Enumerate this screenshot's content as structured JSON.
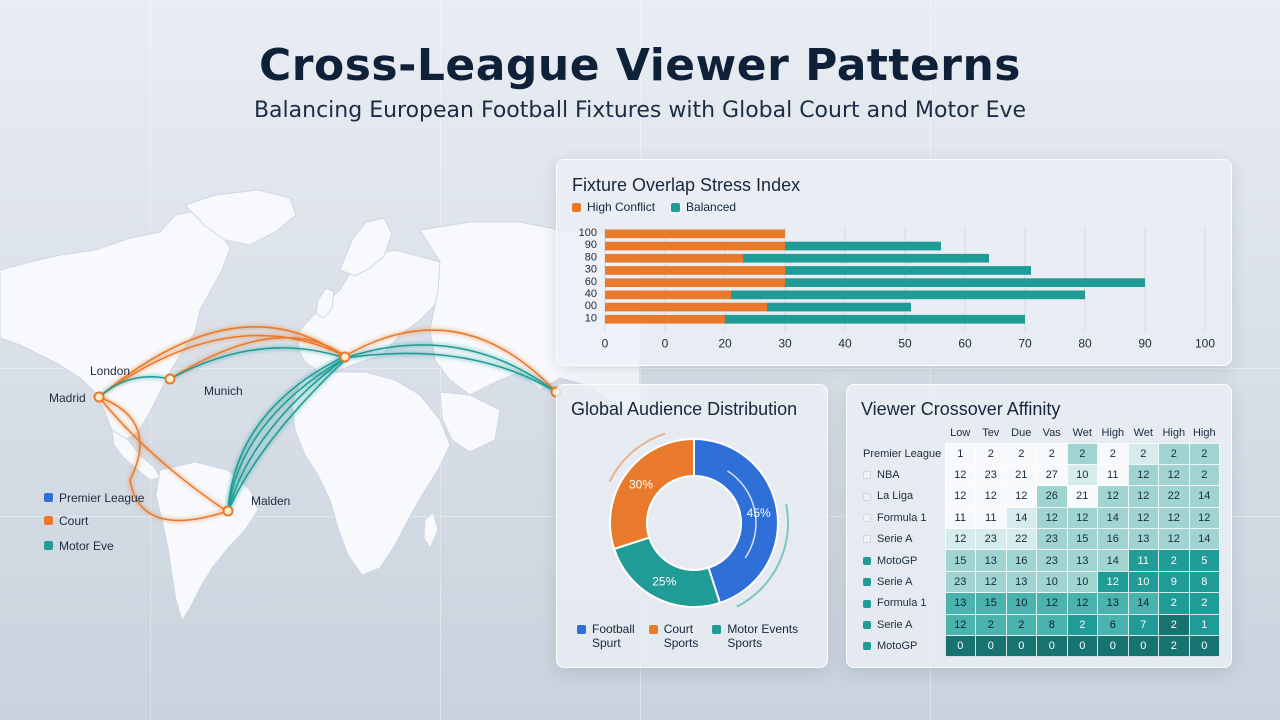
{
  "header": {
    "title": "Cross-League Viewer Patterns",
    "subtitle": "Balancing European Football Fixtures with Global Court and Motor Eve"
  },
  "colors": {
    "football_blue": "#2e6fd8",
    "court_orange": "#ea7a2b",
    "motor_teal": "#1f9c96",
    "dark_text": "#0f2138"
  },
  "map": {
    "cities": [
      "London",
      "Madrid",
      "Munich",
      "Malden"
    ],
    "legend": [
      "Premier League",
      "Court",
      "Motor Eve"
    ]
  },
  "chart_data": [
    {
      "type": "bar",
      "title": "Fixture Overlap Stress Index",
      "legend": [
        "High Conflict",
        "Balanced"
      ],
      "categories": [
        "100",
        "90",
        "80",
        "30",
        "60",
        "40",
        "00",
        "10"
      ],
      "series": [
        {
          "name": "High Conflict",
          "values": [
            30,
            30,
            23,
            30,
            30,
            21,
            27,
            20
          ]
        },
        {
          "name": "Balanced",
          "values": [
            0,
            26,
            41,
            41,
            60,
            59,
            24,
            50
          ]
        }
      ],
      "xticks": [
        "0",
        "0",
        "20",
        "30",
        "40",
        "50",
        "60",
        "70",
        "80",
        "90",
        "100"
      ],
      "orientation": "horizontal-stacked"
    },
    {
      "type": "pie",
      "title": "Global Audience Distribution",
      "slices": [
        {
          "label": "Football Spurt",
          "value": 45,
          "display": "45%"
        },
        {
          "label": "Court Sports",
          "value": 25,
          "display": "25%"
        },
        {
          "label": "Motor Events Sports",
          "value": 30,
          "display": "30%"
        }
      ],
      "legend": [
        {
          "line1": "Football",
          "line2": "Spurt"
        },
        {
          "line1": "Court",
          "line2": "Sports"
        },
        {
          "line1": "Motor Events",
          "line2": "Sports"
        }
      ],
      "donut": true
    },
    {
      "type": "heatmap",
      "title": "Viewer Crossover Affinity",
      "columns": [
        "Low",
        "Tev",
        "Due",
        "Vas",
        "Wet",
        "High",
        "Wet",
        "High",
        "High"
      ],
      "rows": [
        {
          "label": "Premier League",
          "marker": "none",
          "values": [
            "1",
            "2",
            "2",
            "2",
            "2",
            "2",
            "2",
            "2",
            "2"
          ],
          "levels": [
            0,
            0,
            0,
            0,
            2,
            0,
            1,
            2,
            2
          ]
        },
        {
          "label": "NBA",
          "marker": "light",
          "values": [
            "12",
            "23",
            "21",
            "27",
            "10",
            "11",
            "12",
            "12",
            "2"
          ],
          "levels": [
            0,
            0,
            0,
            0,
            1,
            0,
            2,
            2,
            2
          ]
        },
        {
          "label": "La Liga",
          "marker": "light",
          "values": [
            "12",
            "12",
            "12",
            "26",
            "21",
            "12",
            "12",
            "22",
            "14"
          ],
          "levels": [
            0,
            0,
            0,
            2,
            0,
            2,
            2,
            2,
            2
          ]
        },
        {
          "label": "Formula 1",
          "marker": "light",
          "values": [
            "11",
            "11",
            "14",
            "12",
            "12",
            "14",
            "12",
            "12",
            "12"
          ],
          "levels": [
            0,
            0,
            1,
            2,
            2,
            2,
            2,
            2,
            2
          ]
        },
        {
          "label": "Serie A",
          "marker": "light",
          "values": [
            "12",
            "23",
            "22",
            "23",
            "15",
            "16",
            "13",
            "12",
            "14"
          ],
          "levels": [
            1,
            1,
            1,
            2,
            2,
            2,
            2,
            2,
            2
          ]
        },
        {
          "label": "MotoGP",
          "marker": "teal",
          "values": [
            "15",
            "13",
            "16",
            "23",
            "13",
            "14",
            "11",
            "2",
            "5"
          ],
          "levels": [
            2,
            2,
            2,
            2,
            2,
            2,
            4,
            4,
            4
          ]
        },
        {
          "label": "Serie A",
          "marker": "teal",
          "values": [
            "23",
            "12",
            "13",
            "10",
            "10",
            "12",
            "10",
            "9",
            "8"
          ],
          "levels": [
            2,
            2,
            2,
            2,
            2,
            4,
            4,
            4,
            4
          ]
        },
        {
          "label": "Formula 1",
          "marker": "teal",
          "values": [
            "13",
            "15",
            "10",
            "12",
            "12",
            "13",
            "14",
            "2",
            "2"
          ],
          "levels": [
            3,
            3,
            3,
            3,
            3,
            3,
            3,
            4,
            4
          ]
        },
        {
          "label": "Serie A",
          "marker": "teal",
          "values": [
            "12",
            "2",
            "2",
            "8",
            "2",
            "6",
            "7",
            "2",
            "1"
          ],
          "levels": [
            3,
            3,
            3,
            3,
            4,
            3,
            4,
            5,
            4
          ]
        },
        {
          "label": "MotoGP",
          "marker": "teal",
          "values": [
            "0",
            "0",
            "0",
            "0",
            "0",
            "0",
            "0",
            "2",
            "0"
          ],
          "levels": [
            5,
            5,
            5,
            5,
            5,
            5,
            5,
            5,
            5
          ]
        }
      ]
    }
  ]
}
